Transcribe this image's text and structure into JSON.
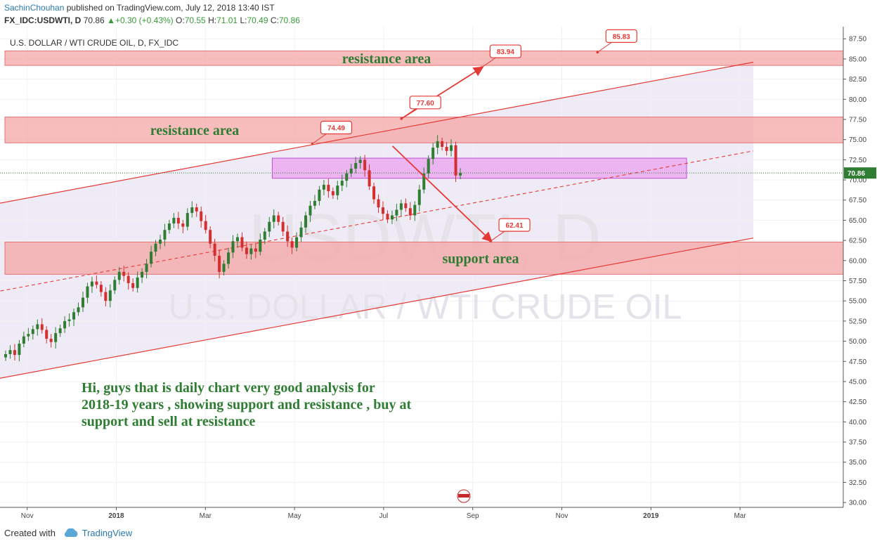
{
  "header": {
    "author": "SachinChouhan",
    "published": " published on TradingView.com, July 12, 2018 13:40 IST",
    "symbol": "FX_IDC:USDWTI, D",
    "last": "70.86",
    "change_arrow": "▲",
    "change": "+0.30 (+0.43%)",
    "open_label": "O:",
    "open": "70.55",
    "high_label": "H:",
    "high": "71.01",
    "low_label": "L:",
    "low": "70.49",
    "close_label": "C:",
    "close": "70.86"
  },
  "footer": {
    "created_with": "Created with",
    "brand": "TradingView"
  },
  "colors": {
    "candle_up": "#2e7d32",
    "candle_down": "#d32f2f",
    "zone": "#f4a6a6",
    "box": "#e98fee",
    "channel": "#e53935"
  },
  "chart_data": {
    "type": "candlestick",
    "title": "U.S. DOLLAR / WTI CRUDE OIL, D, FX_IDC",
    "watermark_symbol": "USDWTI, D",
    "watermark_name": "U.S. DOLLAR / WTI CRUDE OIL",
    "ylim": [
      29.4,
      89.0
    ],
    "y_ticks": [
      "87.50",
      "85.00",
      "82.50",
      "80.00",
      "77.50",
      "75.00",
      "72.50",
      "70.00",
      "67.50",
      "65.00",
      "62.50",
      "60.00",
      "57.50",
      "55.00",
      "52.50",
      "50.00",
      "47.50",
      "45.00",
      "42.50",
      "40.00",
      "37.50",
      "35.00",
      "32.50",
      "30.00"
    ],
    "last_price": "70.86",
    "x_ticks": [
      {
        "label": "Nov",
        "bold": false,
        "t": 0.5
      },
      {
        "label": "2018",
        "bold": true,
        "t": 2.5
      },
      {
        "label": "Mar",
        "bold": false,
        "t": 4.5
      },
      {
        "label": "May",
        "bold": false,
        "t": 6.5
      },
      {
        "label": "Jul",
        "bold": false,
        "t": 8.5
      },
      {
        "label": "Sep",
        "bold": false,
        "t": 10.5
      },
      {
        "label": "Nov",
        "bold": false,
        "t": 12.5
      },
      {
        "label": "2019",
        "bold": true,
        "t": 14.5
      },
      {
        "label": "Mar",
        "bold": false,
        "t": 16.5
      }
    ],
    "zones": [
      {
        "label": "resistance area",
        "from": 84.2,
        "to": 86.0
      },
      {
        "label": "resistance area",
        "from": 74.6,
        "to": 77.8
      },
      {
        "label": "support area",
        "from": 58.3,
        "to": 62.3
      }
    ],
    "box": {
      "from": 70.2,
      "to": 72.7,
      "t0": 6.0,
      "t1": 15.3
    },
    "channel": {
      "upper": [
        [
          -1.0,
          66.2
        ],
        [
          16.8,
          84.6
        ]
      ],
      "middle": [
        [
          -1.0,
          55.3
        ],
        [
          16.8,
          73.6
        ]
      ],
      "lower": [
        [
          -1.0,
          44.5
        ],
        [
          16.8,
          62.8
        ]
      ]
    },
    "callouts": [
      {
        "label": "74.49",
        "t": 6.9,
        "price": 74.49
      },
      {
        "label": "77.60",
        "t": 8.9,
        "price": 77.6
      },
      {
        "label": "83.94",
        "t": 10.7,
        "price": 83.94
      },
      {
        "label": "62.41",
        "t": 10.9,
        "price": 62.41
      },
      {
        "label": "85.83",
        "t": 13.3,
        "price": 85.83
      }
    ],
    "arrows": [
      {
        "from": [
          8.9,
          77.6
        ],
        "to": [
          10.7,
          83.9
        ]
      },
      {
        "from": [
          8.7,
          74.2
        ],
        "to": [
          10.9,
          62.5
        ]
      }
    ],
    "closes": [
      48.4,
      48.9,
      48.3,
      49.7,
      50.6,
      50.9,
      51.5,
      52.1,
      51.4,
      50.3,
      49.9,
      51.0,
      51.6,
      52.5,
      52.7,
      53.6,
      54.2,
      55.4,
      56.8,
      57.4,
      57.0,
      56.1,
      55.0,
      56.3,
      57.6,
      58.6,
      58.1,
      57.2,
      56.6,
      57.9,
      58.6,
      59.6,
      61.1,
      62.1,
      62.6,
      63.8,
      64.6,
      65.3,
      64.6,
      64.2,
      65.9,
      66.6,
      66.1,
      64.9,
      63.8,
      62.1,
      60.6,
      58.6,
      59.6,
      61.0,
      62.4,
      62.9,
      61.6,
      60.8,
      61.5,
      61.1,
      62.6,
      63.6,
      64.8,
      65.6,
      64.8,
      63.6,
      62.4,
      61.6,
      62.9,
      64.1,
      65.6,
      66.8,
      67.4,
      68.8,
      69.4,
      68.6,
      68.1,
      69.3,
      69.9,
      70.8,
      71.4,
      72.1,
      72.5,
      71.2,
      69.2,
      67.6,
      66.6,
      65.8,
      65.1,
      65.6,
      66.3,
      67.1,
      66.5,
      65.6,
      66.9,
      68.8,
      70.8,
      72.6,
      74.0,
      74.8,
      74.1,
      73.6,
      74.3,
      70.55,
      70.86
    ],
    "annotation_text": "Hi, guys that is daily chart very good analysis for 2018-19 years , showing support and resistance , buy at support and sell at resistance"
  }
}
